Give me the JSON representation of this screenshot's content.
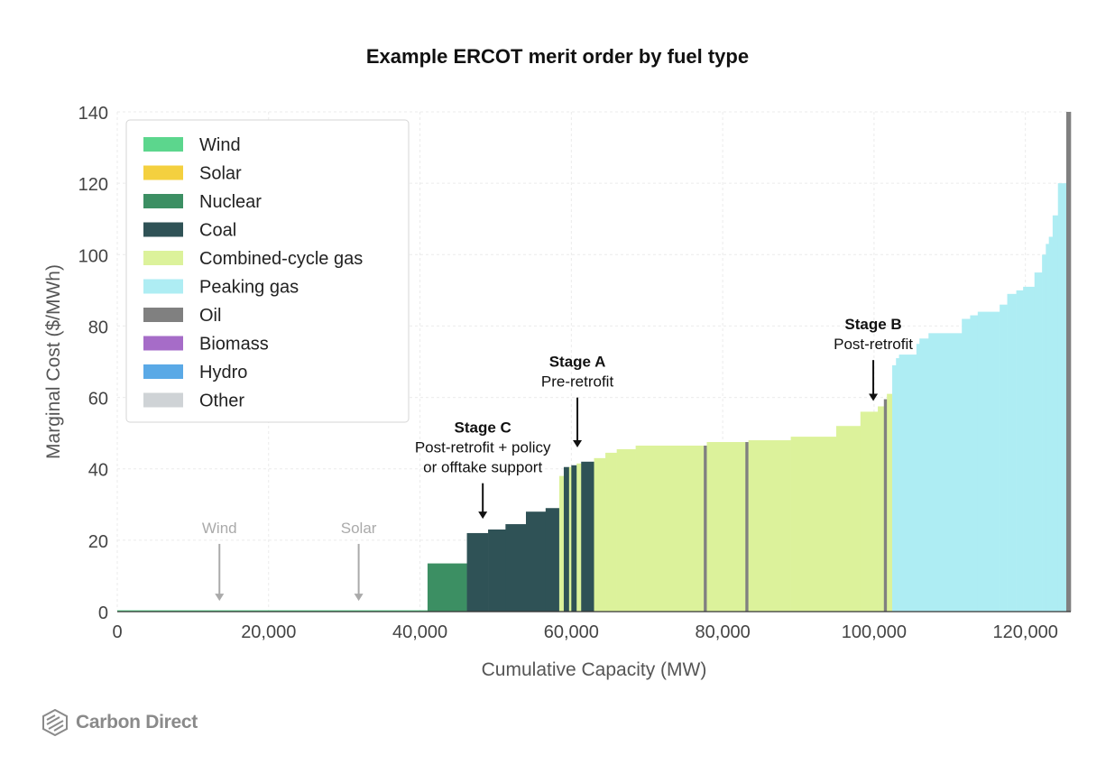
{
  "chart_data": {
    "type": "bar",
    "title": "Example ERCOT merit order by fuel type",
    "xlabel": "Cumulative Capacity (MW)",
    "ylabel": "Marginal Cost ($/MWh)",
    "xlim": [
      0,
      126000
    ],
    "ylim": [
      0,
      140
    ],
    "xticks": [
      "0",
      "20,000",
      "40,000",
      "60,000",
      "80,000",
      "100,000",
      "120,000"
    ],
    "yticks": [
      "0",
      "20",
      "40",
      "60",
      "80",
      "100",
      "120",
      "140"
    ],
    "grid": true,
    "legend_position": "top-left",
    "legend": [
      {
        "name": "Wind",
        "color": "#5cd68d"
      },
      {
        "name": "Solar",
        "color": "#f4d03f"
      },
      {
        "name": "Nuclear",
        "color": "#3c8f63"
      },
      {
        "name": "Coal",
        "color": "#2f5256"
      },
      {
        "name": "Combined-cycle gas",
        "color": "#dcf29b"
      },
      {
        "name": "Peaking gas",
        "color": "#aeedf3"
      },
      {
        "name": "Oil",
        "color": "#808080"
      },
      {
        "name": "Biomass",
        "color": "#a66cc8"
      },
      {
        "name": "Hydro",
        "color": "#5aa9e6"
      },
      {
        "name": "Other",
        "color": "#cfd3d6"
      }
    ],
    "segments": [
      {
        "fuel": "Wind",
        "x0": 0,
        "x1": 41000,
        "y": 0.3
      },
      {
        "fuel": "Nuclear",
        "x0": 41000,
        "x1": 46200,
        "y": 13.5
      },
      {
        "fuel": "Coal",
        "x0": 46200,
        "x1": 49000,
        "y": 22.0
      },
      {
        "fuel": "Coal",
        "x0": 49000,
        "x1": 51300,
        "y": 23.0
      },
      {
        "fuel": "Coal",
        "x0": 51300,
        "x1": 54000,
        "y": 24.5
      },
      {
        "fuel": "Coal",
        "x0": 54000,
        "x1": 56600,
        "y": 28.0
      },
      {
        "fuel": "Coal",
        "x0": 56600,
        "x1": 58400,
        "y": 29.0
      },
      {
        "fuel": "Combined-cycle gas",
        "x0": 58400,
        "x1": 59000,
        "y": 38.0
      },
      {
        "fuel": "Coal",
        "x0": 59000,
        "x1": 59700,
        "y": 40.5
      },
      {
        "fuel": "Combined-cycle gas",
        "x0": 59700,
        "x1": 60000,
        "y": 40.5
      },
      {
        "fuel": "Coal",
        "x0": 60000,
        "x1": 60700,
        "y": 41.0
      },
      {
        "fuel": "Combined-cycle gas",
        "x0": 60700,
        "x1": 61300,
        "y": 41.5
      },
      {
        "fuel": "Coal",
        "x0": 61300,
        "x1": 63000,
        "y": 42.0
      },
      {
        "fuel": "Combined-cycle gas",
        "x0": 63000,
        "x1": 64500,
        "y": 43.0
      },
      {
        "fuel": "Combined-cycle gas",
        "x0": 64500,
        "x1": 66000,
        "y": 44.5
      },
      {
        "fuel": "Combined-cycle gas",
        "x0": 66000,
        "x1": 68500,
        "y": 45.5
      },
      {
        "fuel": "Combined-cycle gas",
        "x0": 68500,
        "x1": 77500,
        "y": 46.5
      },
      {
        "fuel": "Oil",
        "x0": 77500,
        "x1": 77900,
        "y": 46.5
      },
      {
        "fuel": "Combined-cycle gas",
        "x0": 77900,
        "x1": 83000,
        "y": 47.5
      },
      {
        "fuel": "Oil",
        "x0": 83000,
        "x1": 83400,
        "y": 47.5
      },
      {
        "fuel": "Combined-cycle gas",
        "x0": 83400,
        "x1": 89000,
        "y": 48.0
      },
      {
        "fuel": "Combined-cycle gas",
        "x0": 89000,
        "x1": 95000,
        "y": 49.0
      },
      {
        "fuel": "Combined-cycle gas",
        "x0": 95000,
        "x1": 98200,
        "y": 52.0
      },
      {
        "fuel": "Combined-cycle gas",
        "x0": 98200,
        "x1": 100500,
        "y": 56.0
      },
      {
        "fuel": "Combined-cycle gas",
        "x0": 100500,
        "x1": 101300,
        "y": 57.5
      },
      {
        "fuel": "Oil",
        "x0": 101300,
        "x1": 101700,
        "y": 59.5
      },
      {
        "fuel": "Combined-cycle gas",
        "x0": 101700,
        "x1": 102400,
        "y": 61.0
      },
      {
        "fuel": "Peaking gas",
        "x0": 102400,
        "x1": 102900,
        "y": 69.0
      },
      {
        "fuel": "Peaking gas",
        "x0": 102900,
        "x1": 103300,
        "y": 71.0
      },
      {
        "fuel": "Peaking gas",
        "x0": 103300,
        "x1": 105600,
        "y": 72.0
      },
      {
        "fuel": "Peaking gas",
        "x0": 105600,
        "x1": 106000,
        "y": 75.0
      },
      {
        "fuel": "Peaking gas",
        "x0": 106000,
        "x1": 107200,
        "y": 76.5
      },
      {
        "fuel": "Peaking gas",
        "x0": 107200,
        "x1": 111600,
        "y": 78.0
      },
      {
        "fuel": "Peaking gas",
        "x0": 111600,
        "x1": 112700,
        "y": 82.0
      },
      {
        "fuel": "Peaking gas",
        "x0": 112700,
        "x1": 113700,
        "y": 83.0
      },
      {
        "fuel": "Peaking gas",
        "x0": 113700,
        "x1": 116600,
        "y": 84.0
      },
      {
        "fuel": "Peaking gas",
        "x0": 116600,
        "x1": 117600,
        "y": 86.0
      },
      {
        "fuel": "Peaking gas",
        "x0": 117600,
        "x1": 118800,
        "y": 89.0
      },
      {
        "fuel": "Peaking gas",
        "x0": 118800,
        "x1": 119700,
        "y": 90.0
      },
      {
        "fuel": "Peaking gas",
        "x0": 119700,
        "x1": 121200,
        "y": 91.0
      },
      {
        "fuel": "Peaking gas",
        "x0": 121200,
        "x1": 122200,
        "y": 95.0
      },
      {
        "fuel": "Peaking gas",
        "x0": 122200,
        "x1": 122700,
        "y": 100.0
      },
      {
        "fuel": "Peaking gas",
        "x0": 122700,
        "x1": 123100,
        "y": 103.0
      },
      {
        "fuel": "Peaking gas",
        "x0": 123100,
        "x1": 123600,
        "y": 105.0
      },
      {
        "fuel": "Peaking gas",
        "x0": 123600,
        "x1": 124300,
        "y": 111.0
      },
      {
        "fuel": "Peaking gas",
        "x0": 124300,
        "x1": 125400,
        "y": 120.0
      },
      {
        "fuel": "Oil",
        "x0": 125400,
        "x1": 126000,
        "y": 140.0
      }
    ],
    "annotations": [
      {
        "title": "Stage A",
        "lines": [
          "Pre-retrofit"
        ],
        "x": 60800,
        "y": 63.0,
        "arrow_to_y": 46.0,
        "color": "#111111"
      },
      {
        "title": "Stage B",
        "lines": [
          "Post-retrofit"
        ],
        "x": 99900,
        "y": 73.5,
        "arrow_to_y": 59.0,
        "color": "#111111"
      },
      {
        "title": "Stage C",
        "lines": [
          "Post-retrofit + policy",
          "or offtake support"
        ],
        "x": 48300,
        "y": 39.0,
        "arrow_to_y": 26.0,
        "color": "#111111"
      },
      {
        "title": "",
        "lines": [
          "Wind"
        ],
        "x": 13500,
        "y": 22.0,
        "arrow_to_y": 3.0,
        "color": "#aaaaaa"
      },
      {
        "title": "",
        "lines": [
          "Solar"
        ],
        "x": 31900,
        "y": 22.0,
        "arrow_to_y": 3.0,
        "color": "#aaaaaa"
      }
    ]
  },
  "branding": {
    "logo_text": "Carbon Direct",
    "logo_icon": "cube-logo-icon"
  }
}
